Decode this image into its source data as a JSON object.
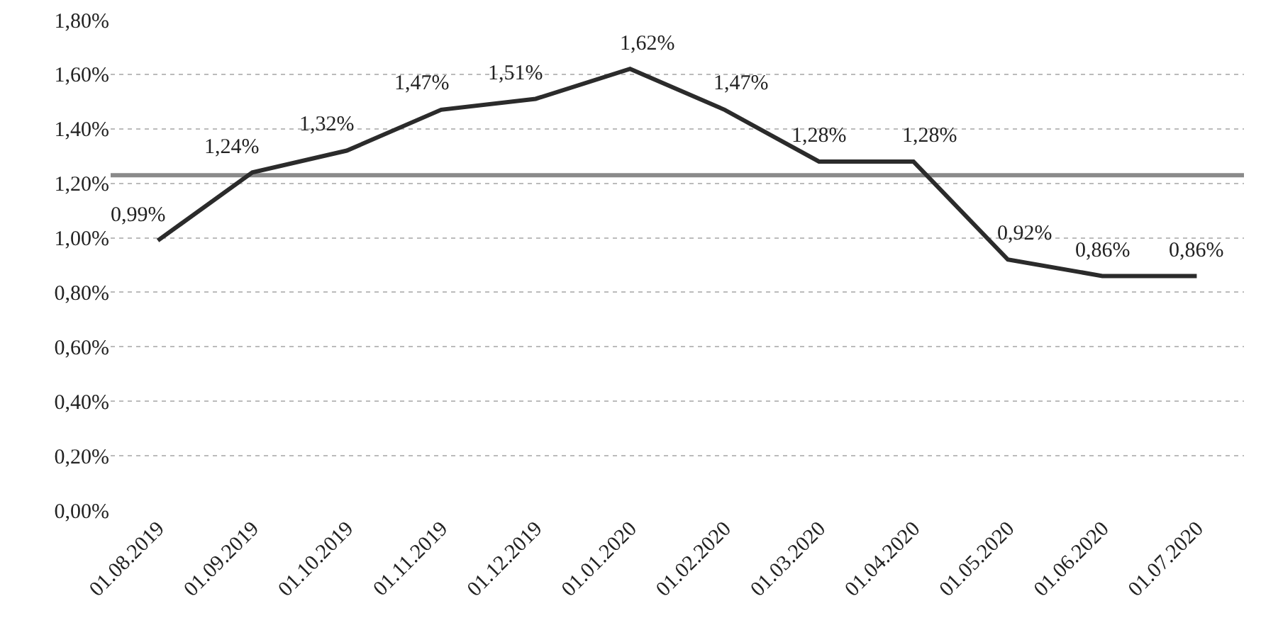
{
  "chart_data": {
    "type": "line",
    "categories": [
      "01.08.2019",
      "01.09.2019",
      "01.10.2019",
      "01.11.2019",
      "01.12.2019",
      "01.01.2020",
      "01.02.2020",
      "01.03.2020",
      "01.04.2020",
      "01.05.2020",
      "01.06.2020",
      "01.07.2020"
    ],
    "series": [
      {
        "color": "#2b2b2b",
        "values": [
          0.99,
          1.24,
          1.32,
          1.47,
          1.51,
          1.62,
          1.47,
          1.28,
          1.28,
          0.92,
          0.86,
          0.86
        ],
        "value_labels": [
          "0,99%",
          "1,24%",
          "1,32%",
          "1,47%",
          "1,51%",
          "1,62%",
          "1,47%",
          "1,28%",
          "1,28%",
          "0,92%",
          "0,86%",
          "0,86%"
        ]
      }
    ],
    "ref_lines": [
      {
        "axis": "y",
        "value": 1.23,
        "color": "#8a8a8a"
      }
    ],
    "ylim": [
      0,
      1.8
    ],
    "yticks": [
      {
        "value": 0,
        "label": "0,00%"
      },
      {
        "value": 0.2,
        "label": "0,20%"
      },
      {
        "value": 0.4,
        "label": "0,40%"
      },
      {
        "value": 0.6,
        "label": "0,60%"
      },
      {
        "value": 0.8,
        "label": "0,80%"
      },
      {
        "value": 1.0,
        "label": "1,00%"
      },
      {
        "value": 1.2,
        "label": "1,20%"
      },
      {
        "value": 1.4,
        "label": "1,40%"
      },
      {
        "value": 1.6,
        "label": "1,60%"
      },
      {
        "value": 1.8,
        "label": "1,80%"
      }
    ],
    "grid": "y",
    "marker": "none",
    "line_style": "solid"
  }
}
